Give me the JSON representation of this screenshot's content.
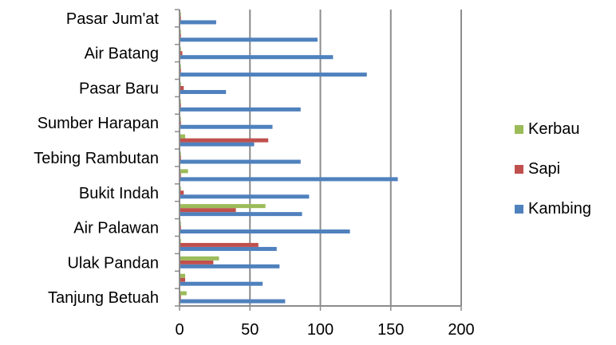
{
  "chart_data": {
    "type": "bar",
    "orientation": "horizontal",
    "categories": [
      "Tanjung Betuah",
      "",
      "Ulak Pandan",
      "",
      "Air Palawan",
      "",
      "Bukit Indah",
      "",
      "Tebing Rambutan",
      "",
      "Sumber Harapan",
      "",
      "Pasar Baru",
      "",
      "Air Batang",
      "",
      "Pasar Jum'at"
    ],
    "series": [
      {
        "name": "Kambing",
        "color": "#4F81BD",
        "values": [
          75,
          59,
          71,
          69,
          121,
          87,
          92,
          155,
          86,
          53,
          66,
          86,
          33,
          133,
          109,
          98,
          26
        ]
      },
      {
        "name": "Sapi",
        "color": "#C0504D",
        "values": [
          1,
          4,
          24,
          56,
          1,
          40,
          3,
          1,
          1,
          63,
          1,
          1,
          3,
          1,
          2,
          1,
          1
        ]
      },
      {
        "name": "Kerbau",
        "color": "#9BBB59",
        "values": [
          5,
          4,
          28,
          1,
          1,
          61,
          1,
          6,
          1,
          4,
          1,
          1,
          1,
          1,
          1,
          1,
          1
        ]
      }
    ],
    "xlim": [
      0,
      200
    ],
    "xticks": [
      0,
      50,
      100,
      150,
      200
    ],
    "grid": true,
    "legend": {
      "position": "right",
      "order": [
        "Kerbau",
        "Sapi",
        "Kambing"
      ]
    }
  }
}
